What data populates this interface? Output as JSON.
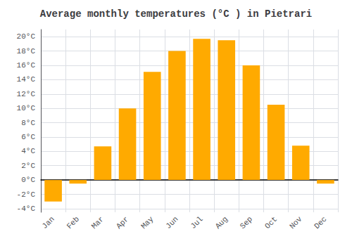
{
  "chart_data": {
    "type": "bar",
    "title": "Average monthly temperatures (°C ) in Pietrari",
    "categories": [
      "Jan",
      "Feb",
      "Mar",
      "Apr",
      "May",
      "Jun",
      "Jul",
      "Aug",
      "Sep",
      "Oct",
      "Nov",
      "Dec"
    ],
    "values": [
      -3.0,
      -0.5,
      4.7,
      10.0,
      15.1,
      18.0,
      19.7,
      19.5,
      16.0,
      10.5,
      4.8,
      -0.5
    ],
    "color": "#FFAA00",
    "ylim": [
      -4.5,
      21.0
    ],
    "yticks": [
      {
        "value": -4,
        "label": "-4°C"
      },
      {
        "value": -2,
        "label": "-2°C"
      },
      {
        "value": 0,
        "label": "0°C"
      },
      {
        "value": 2,
        "label": "2°C"
      },
      {
        "value": 4,
        "label": "4°C"
      },
      {
        "value": 6,
        "label": "6°C"
      },
      {
        "value": 8,
        "label": "8°C"
      },
      {
        "value": 10,
        "label": "10°C"
      },
      {
        "value": 12,
        "label": "12°C"
      },
      {
        "value": 14,
        "label": "14°C"
      },
      {
        "value": 16,
        "label": "16°C"
      },
      {
        "value": 18,
        "label": "18°C"
      },
      {
        "value": 20,
        "label": "20°C"
      }
    ],
    "grid": true
  }
}
